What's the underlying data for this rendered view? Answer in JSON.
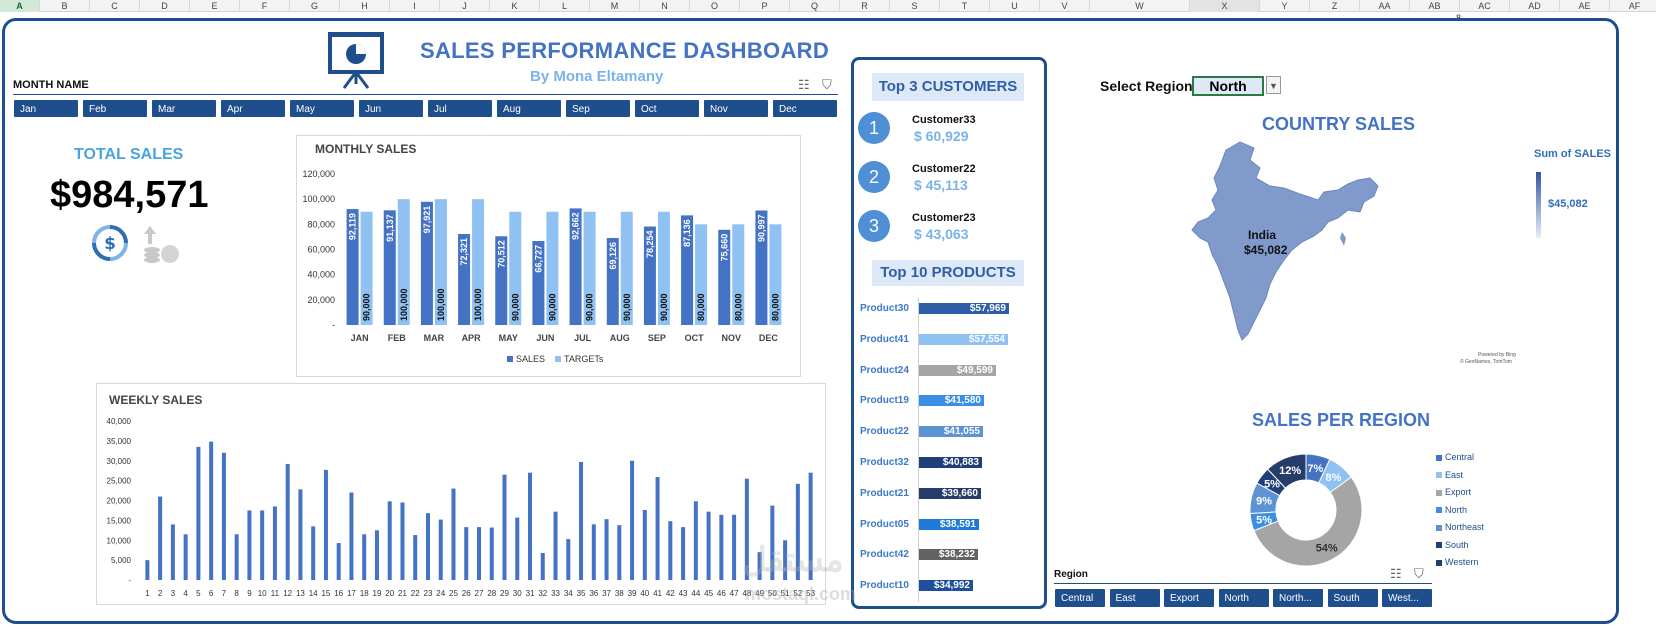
{
  "spreadsheet": {
    "columns": [
      "A",
      "B",
      "C",
      "D",
      "E",
      "F",
      "G",
      "H",
      "I",
      "J",
      "K",
      "L",
      "M",
      "N",
      "O",
      "P",
      "Q",
      "R",
      "S",
      "T",
      "U",
      "V",
      "W",
      "X",
      "Y",
      "Z",
      "AA",
      "AB",
      "AC",
      "AD",
      "AE",
      "AF"
    ],
    "selected_column": "A",
    "active_column": "X",
    "row_marker": "8"
  },
  "header": {
    "title": "SALES PERFORMANCE DASHBOARD",
    "subtitle": "By Mona Eltamany"
  },
  "month_slicer": {
    "label": "MONTH NAME",
    "items": [
      "Jan",
      "Feb",
      "Mar",
      "Apr",
      "May",
      "Jun",
      "Jul",
      "Aug",
      "Sep",
      "Oct",
      "Nov",
      "Dec"
    ]
  },
  "total_sales": {
    "label": "TOTAL SALES",
    "value": "$984,571"
  },
  "monthly_sales": {
    "title": "MONTHLY SALES",
    "legend": [
      "SALES",
      "TARGETs"
    ],
    "y_ticks": [
      "120,000",
      "100,000",
      "80,000",
      "60,000",
      "40,000",
      "20,000",
      "-"
    ],
    "colors": {
      "sales": "#4472c4",
      "targets": "#8fc1f2"
    }
  },
  "weekly_sales": {
    "title": "WEEKLY SALES",
    "y_ticks": [
      "40,000",
      "35,000",
      "30,000",
      "25,000",
      "20,000",
      "15,000",
      "10,000",
      "5,000",
      "-"
    ],
    "color": "#4472c4"
  },
  "top_customers": {
    "title": "Top 3 CUSTOMERS",
    "items": [
      {
        "rank": "1",
        "name": "Customer33",
        "value": "$ 60,929"
      },
      {
        "rank": "2",
        "name": "Customer22",
        "value": "$ 45,113"
      },
      {
        "rank": "3",
        "name": "Customer23",
        "value": "$ 43,063"
      }
    ]
  },
  "top_products": {
    "title": "Top 10 PRODUCTS",
    "items": [
      {
        "name": "Product30",
        "label": "$57,969",
        "value": 57969,
        "color": "#2f5ea8"
      },
      {
        "name": "Product41",
        "label": "$57,554",
        "value": 57554,
        "color": "#8fc1f2"
      },
      {
        "name": "Product24",
        "label": "$49,599",
        "value": 49599,
        "color": "#a5a5a5"
      },
      {
        "name": "Product19",
        "label": "$41,580",
        "value": 41580,
        "color": "#3a8ee6"
      },
      {
        "name": "Product22",
        "label": "$41,055",
        "value": 41055,
        "color": "#5b93d3"
      },
      {
        "name": "Product32",
        "label": "$40,883",
        "value": 40883,
        "color": "#1f3f7a"
      },
      {
        "name": "Product21",
        "label": "$39,660",
        "value": 39660,
        "color": "#263c6a"
      },
      {
        "name": "Product05",
        "label": "$38,591",
        "value": 38591,
        "color": "#1e7ad6"
      },
      {
        "name": "Product42",
        "label": "$38,232",
        "value": 38232,
        "color": "#636363"
      },
      {
        "name": "Product10",
        "label": "$34,992",
        "value": 34992,
        "color": "#1f4e9c"
      }
    ]
  },
  "region_selector": {
    "label": "Select Region:",
    "value": "North"
  },
  "country_sales": {
    "title": "COUNTRY SALES",
    "country": "India",
    "value": "$45,082",
    "legend_title": "Sum of SALES",
    "legend_value": "$45,082",
    "credit_line1": "Powered by Bing",
    "credit_line2": "© GeoNames, TomTom",
    "fill": "#7f9acb"
  },
  "sales_per_region": {
    "title": "SALES PER REGION",
    "legend": [
      {
        "name": "Central",
        "color": "#4472c4"
      },
      {
        "name": "East",
        "color": "#8fc1f2"
      },
      {
        "name": "Export",
        "color": "#a5a5a5"
      },
      {
        "name": "North",
        "color": "#3a8ee6"
      },
      {
        "name": "Northeast",
        "color": "#5b93d3"
      },
      {
        "name": "South",
        "color": "#1f3f7a"
      },
      {
        "name": "Western",
        "color": "#263c6a"
      }
    ]
  },
  "region_slicer": {
    "label": "Region",
    "items": [
      "Central",
      "East",
      "Export",
      "North",
      "North...",
      "South",
      "West..."
    ]
  },
  "watermark": {
    "text": "مستقل",
    "sub": "mostaql.com"
  },
  "chart_data": [
    {
      "type": "bar",
      "title": "MONTHLY SALES",
      "categories": [
        "JAN",
        "FEB",
        "MAR",
        "APR",
        "MAY",
        "JUN",
        "JUL",
        "AUG",
        "SEP",
        "OCT",
        "NOV",
        "DEC"
      ],
      "series": [
        {
          "name": "SALES",
          "values": [
            92119,
            91137,
            97921,
            72321,
            70512,
            66727,
            92662,
            69126,
            78254,
            87136,
            75660,
            90997
          ],
          "labels": [
            "92,119",
            "91,137",
            "97,921",
            "72,321",
            "70,512",
            "66,727",
            "92,662",
            "69,126",
            "78,254",
            "87,136",
            "75,660",
            "90,997"
          ]
        },
        {
          "name": "TARGETs",
          "values": [
            90000,
            100000,
            100000,
            100000,
            90000,
            90000,
            90000,
            90000,
            90000,
            80000,
            80000,
            80000
          ],
          "labels": [
            "90,000",
            "100,000",
            "100,000",
            "100,000",
            "90,000",
            "90,000",
            "90,000",
            "90,000",
            "90,000",
            "80,000",
            "80,000",
            "80,000"
          ]
        }
      ],
      "ylim": [
        0,
        120000
      ],
      "legend_position": "bottom"
    },
    {
      "type": "bar",
      "title": "WEEKLY SALES",
      "categories": [
        "1",
        "2",
        "3",
        "4",
        "5",
        "6",
        "7",
        "8",
        "9",
        "10",
        "11",
        "12",
        "13",
        "14",
        "15",
        "16",
        "17",
        "18",
        "19",
        "20",
        "21",
        "22",
        "23",
        "24",
        "25",
        "26",
        "27",
        "28",
        "29",
        "30",
        "31",
        "32",
        "33",
        "34",
        "35",
        "36",
        "37",
        "38",
        "39",
        "40",
        "41",
        "42",
        "43",
        "44",
        "45",
        "46",
        "47",
        "48",
        "49",
        "50",
        "51",
        "52",
        "53"
      ],
      "values": [
        5000,
        21000,
        14000,
        11500,
        33500,
        34800,
        32000,
        11500,
        17500,
        17500,
        18500,
        29200,
        22800,
        13500,
        27700,
        9300,
        22000,
        11500,
        12500,
        19800,
        19500,
        11300,
        16800,
        15200,
        23000,
        13300,
        13300,
        13200,
        26500,
        15700,
        27000,
        6800,
        17200,
        10300,
        29700,
        14000,
        15300,
        13800,
        30000,
        17600,
        25900,
        14800,
        13300,
        19800,
        17200,
        16400,
        16400,
        25500,
        7000,
        18700,
        10000,
        24200,
        27000
      ],
      "ylim": [
        0,
        40000
      ],
      "legend_position": "none"
    },
    {
      "type": "pie",
      "title": "SALES PER REGION",
      "categories": [
        "Central",
        "East",
        "Export",
        "North",
        "Northeast",
        "South",
        "Western"
      ],
      "values": [
        7,
        8,
        54,
        5,
        9,
        5,
        12
      ],
      "labels": [
        "7%",
        "8%",
        "54%",
        "5%",
        "9%",
        "5%",
        "12%"
      ],
      "legend_position": "right"
    }
  ]
}
